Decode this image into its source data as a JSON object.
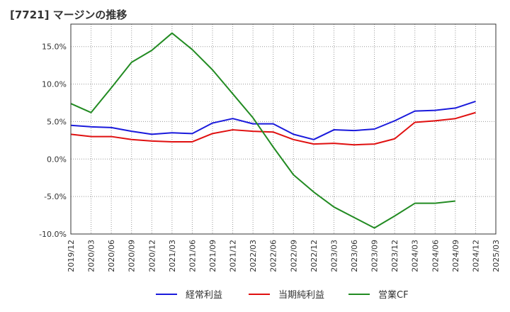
{
  "chart_data": {
    "type": "line",
    "title": "[7721]  マージンの推移",
    "x": [
      "2019/12",
      "2020/03",
      "2020/06",
      "2020/09",
      "2020/12",
      "2021/03",
      "2021/06",
      "2021/09",
      "2021/12",
      "2022/03",
      "2022/06",
      "2022/09",
      "2022/12",
      "2023/03",
      "2023/06",
      "2023/09",
      "2023/12",
      "2024/03",
      "2024/06",
      "2024/09",
      "2024/12",
      "2025/03"
    ],
    "ylim": [
      -10,
      18
    ],
    "y_ticks": [
      -10,
      -5,
      0,
      5,
      10,
      15
    ],
    "y_tick_labels": [
      "-10.0%",
      "-5.0%",
      "0.0%",
      "5.0%",
      "10.0%",
      "15.0%"
    ],
    "grid": true,
    "legend_position": "bottom",
    "series": [
      {
        "name": "経常利益",
        "color": "#1a1adc",
        "values": [
          4.5,
          4.3,
          4.2,
          3.7,
          3.3,
          3.5,
          3.4,
          4.8,
          5.4,
          4.7,
          4.7,
          3.3,
          2.6,
          3.9,
          3.8,
          4.0,
          5.1,
          6.4,
          6.5,
          6.8,
          7.7,
          null
        ]
      },
      {
        "name": "当期純利益",
        "color": "#e01010",
        "values": [
          3.3,
          3.0,
          3.0,
          2.6,
          2.4,
          2.3,
          2.3,
          3.4,
          3.9,
          3.7,
          3.6,
          2.6,
          2.0,
          2.1,
          1.9,
          2.0,
          2.7,
          4.9,
          5.1,
          5.4,
          6.2,
          null
        ]
      },
      {
        "name": "営業CF",
        "color": "#228b22",
        "values": [
          7.4,
          6.2,
          9.5,
          12.9,
          14.5,
          16.8,
          14.6,
          11.9,
          8.7,
          5.5,
          1.6,
          -2.1,
          -4.4,
          -6.4,
          -7.8,
          -9.2,
          -7.6,
          -5.9,
          -5.9,
          -5.6,
          null,
          null
        ]
      }
    ]
  }
}
